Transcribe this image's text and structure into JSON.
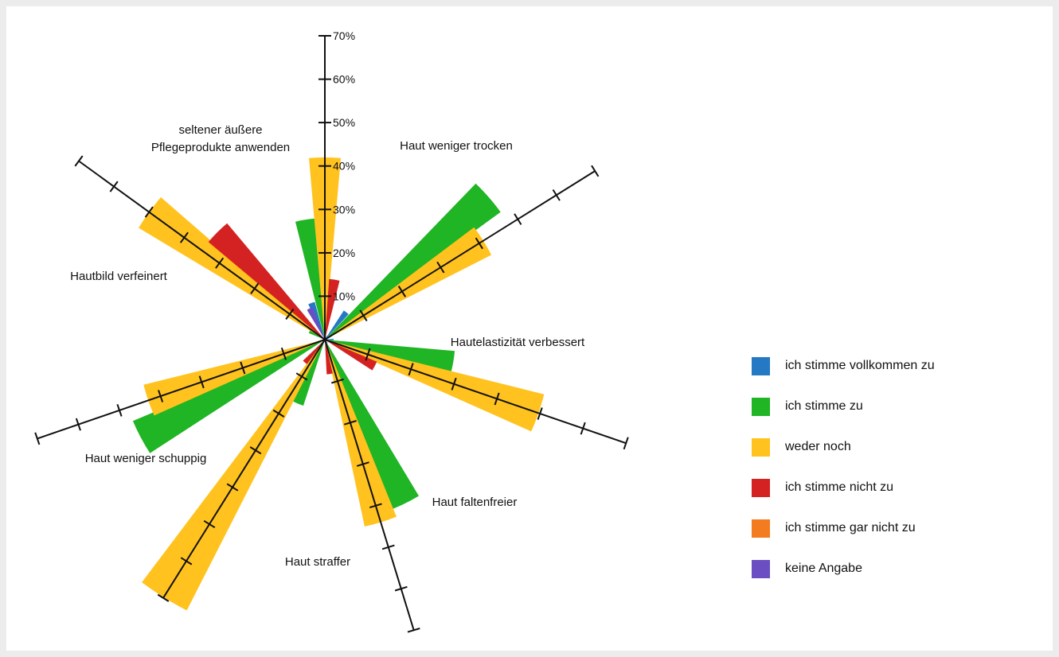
{
  "chart_data": {
    "type": "polar-bar",
    "radial_axis": {
      "range": [
        0,
        70
      ],
      "ticks": [
        10,
        20,
        30,
        40,
        50,
        60,
        70
      ],
      "tick_labels": [
        "10%",
        "20%",
        "30%",
        "40%",
        "50%",
        "60%",
        "70%"
      ]
    },
    "series": [
      {
        "name": "ich stimme vollkommen zu",
        "color": "#2478c4"
      },
      {
        "name": "ich stimme zu",
        "color": "#1fb524"
      },
      {
        "name": "weder noch",
        "color": "#ffc21f"
      },
      {
        "name": "ich stimme nicht zu",
        "color": "#d42222"
      },
      {
        "name": "ich stimme gar nicht zu",
        "color": "#f47c20"
      },
      {
        "name": "keine Angabe",
        "color": "#6b4fc2"
      }
    ],
    "categories": [
      {
        "label": "Haut weniger trocken",
        "values": [
          9,
          28,
          42,
          14,
          0,
          1
        ]
      },
      {
        "label": "Hautelastizität verbessert",
        "values": [
          8,
          50,
          43,
          0,
          0,
          0
        ]
      },
      {
        "label": "Haut faltenfreier",
        "values": [
          2,
          30,
          52,
          13,
          0,
          0
        ]
      },
      {
        "label": "Haut straffer",
        "values": [
          1,
          42,
          44,
          8,
          0,
          0
        ]
      },
      {
        "label": "Haut weniger schuppig",
        "values": [
          0,
          16,
          70,
          7,
          0,
          0
        ]
      },
      {
        "label": "Hautbild verfeinert",
        "values": [
          0,
          48,
          43,
          0,
          0,
          0
        ]
      },
      {
        "label": "seltener äußere Pflegeprodukte anwenden",
        "label_lines": [
          "seltener äußere",
          "Pflegeprodukte anwenden"
        ],
        "values": [
          0,
          4,
          50,
          35,
          0,
          8
        ]
      }
    ],
    "grid": false,
    "legend_position": "right"
  }
}
